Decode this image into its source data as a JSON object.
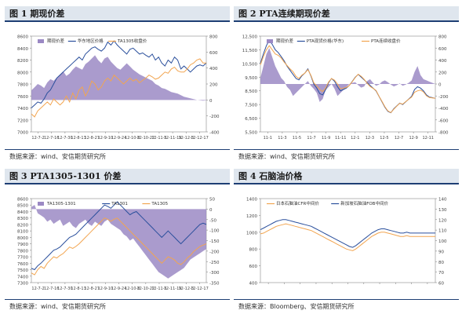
{
  "colors": {
    "basis": "#9b89c4",
    "line_blue": "#2a4f9c",
    "line_orange": "#f2a550",
    "title_bar": "#dfe6ee",
    "rule": "#1e3f74"
  },
  "chart_data": [
    {
      "type": "line",
      "panel_title": "图 1 期现价差",
      "source": "数据来源：wind、安信期货研究所",
      "x_ticks": [
        "12-7-2",
        "12-7-16",
        "12-7-30",
        "12-8-13",
        "12-8-27",
        "12-9-10",
        "12-9-24",
        "12-10-8",
        "12-10-22",
        "12-11-5",
        "12-11-19",
        "12-12-3",
        "12-12-17"
      ],
      "y_left": {
        "min": 7000,
        "max": 8600,
        "ticks": [
          "7000",
          "7200",
          "7400",
          "7600",
          "7800",
          "8000",
          "8200",
          "8400",
          "8600"
        ]
      },
      "y_right": {
        "min": -400,
        "max": 800,
        "ticks": [
          "-400",
          "-200",
          "0",
          "200",
          "400",
          "600",
          "800"
        ]
      },
      "legend": [
        "期现价差",
        "华东地区价格",
        "TA1305收盘价"
      ],
      "series": [
        {
          "name": "期现价差",
          "kind": "area",
          "axis": "right",
          "values": [
            120,
            160,
            200,
            180,
            150,
            220,
            260,
            240,
            280,
            320,
            360,
            300,
            330,
            380,
            420,
            400,
            380,
            450,
            480,
            520,
            560,
            500,
            460,
            520,
            540,
            480,
            440,
            400,
            380,
            420,
            460,
            420,
            380,
            350,
            320,
            300,
            280,
            260,
            240,
            200,
            180,
            150,
            140,
            120,
            100,
            90,
            80,
            60,
            40,
            30,
            20,
            10,
            0,
            -5,
            -10,
            -5
          ]
        },
        {
          "name": "华东地区价格",
          "kind": "line",
          "axis": "left",
          "values": [
            7400,
            7450,
            7500,
            7480,
            7550,
            7650,
            7700,
            7800,
            7900,
            7950,
            8000,
            8050,
            8100,
            8150,
            8200,
            8250,
            8200,
            8300,
            8350,
            8400,
            8420,
            8380,
            8350,
            8400,
            8500,
            8450,
            8520,
            8450,
            8400,
            8350,
            8300,
            8380,
            8400,
            8350,
            8300,
            8320,
            8280,
            8250,
            8300,
            8200,
            8250,
            8150,
            8100,
            8200,
            8150,
            8250,
            8200,
            8050,
            8100,
            8050,
            8000,
            8050,
            8100,
            8120,
            8100,
            8150
          ]
        },
        {
          "name": "TA1305收盘价",
          "kind": "line",
          "axis": "left",
          "values": [
            7300,
            7250,
            7350,
            7400,
            7450,
            7500,
            7450,
            7550,
            7500,
            7450,
            7500,
            7600,
            7500,
            7650,
            7550,
            7700,
            7750,
            7600,
            7700,
            7850,
            7800,
            7700,
            7750,
            7850,
            7900,
            7850,
            7950,
            7900,
            7850,
            7800,
            7850,
            7900,
            7850,
            7880,
            7820,
            7860,
            7900,
            7950,
            7920,
            7880,
            7900,
            7950,
            8000,
            7980,
            8050,
            8080,
            8020,
            8000,
            8000,
            8050,
            8120,
            8150,
            8200,
            8220,
            8150,
            8150
          ]
        }
      ]
    },
    {
      "type": "line",
      "panel_title": "图 2 PTA连续期现价差",
      "source": "数据来源：wind、安信期货研究所",
      "x_ticks": [
        "11-1",
        "11-3",
        "11-5",
        "11-7",
        "11-9",
        "11-11",
        "12-1",
        "12-3",
        "12-5",
        "12-7",
        "12-9",
        "12-11"
      ],
      "y_left": {
        "min": 5500,
        "max": 12500,
        "ticks": [
          "5,500",
          "6,500",
          "7,500",
          "8,500",
          "9,500",
          "10,500",
          "11,500",
          "12,500"
        ]
      },
      "y_right": {
        "min": -800,
        "max": 800,
        "ticks": [
          "-800",
          "-600",
          "-400",
          "-200",
          "0",
          "200",
          "400",
          "600",
          "800"
        ]
      },
      "legend": [
        "期现价差",
        "PTA现货价格(华东)",
        "PTA连续收盘价"
      ],
      "series": [
        {
          "name": "期现价差",
          "kind": "area",
          "axis": "right",
          "values": [
            100,
            300,
            500,
            600,
            450,
            300,
            200,
            100,
            50,
            -50,
            -100,
            -200,
            -150,
            -100,
            -50,
            0,
            50,
            -30,
            -80,
            -150,
            -300,
            -250,
            -100,
            -50,
            0,
            -80,
            -200,
            -150,
            -100,
            -50,
            0,
            20,
            30,
            -20,
            -60,
            -40,
            50,
            80,
            20,
            -30,
            -10,
            40,
            60,
            30,
            -10,
            -40,
            -20,
            10,
            -30,
            -10,
            20,
            60,
            200,
            300,
            150,
            80,
            60,
            40,
            20,
            0
          ]
        },
        {
          "name": "PTA现货价格(华东)",
          "kind": "line",
          "axis": "left",
          "values": [
            10500,
            11200,
            11800,
            12200,
            11900,
            11500,
            11300,
            11000,
            10700,
            10300,
            10000,
            9700,
            9400,
            9300,
            9600,
            9800,
            10100,
            9600,
            9000,
            8700,
            8300,
            8200,
            8600,
            9100,
            9400,
            9200,
            8800,
            8500,
            8600,
            8700,
            8900,
            9200,
            9500,
            9700,
            9500,
            9300,
            9100,
            8900,
            8700,
            8500,
            8100,
            7700,
            7300,
            7000,
            6900,
            7200,
            7400,
            7600,
            7500,
            7700,
            7900,
            8100,
            8600,
            8800,
            8700,
            8500,
            8200,
            8050,
            8000,
            7950
          ]
        },
        {
          "name": "PTA连续收盘价",
          "kind": "line",
          "axis": "left",
          "values": [
            10400,
            11000,
            11500,
            11800,
            11500,
            11200,
            11100,
            10900,
            10600,
            10350,
            10100,
            9900,
            9550,
            9400,
            9650,
            9800,
            10050,
            9650,
            9100,
            8850,
            8600,
            8450,
            8700,
            9150,
            9400,
            9280,
            9000,
            8650,
            8700,
            8750,
            8900,
            9180,
            9470,
            9720,
            9560,
            9340,
            9050,
            8820,
            8680,
            8530,
            8110,
            7730,
            7340,
            7030,
            6910,
            7160,
            7380,
            7590,
            7530,
            7710,
            7880,
            8040,
            8400,
            8500,
            8550,
            8420,
            8140,
            8010,
            7980,
            7950
          ]
        }
      ]
    },
    {
      "type": "line",
      "panel_title": "图 3 PTA1305-1301 价差",
      "source": "数据来源：wind、安信期货研究所",
      "x_ticks": [
        "12-7-2",
        "12-7-16",
        "12-7-30",
        "12-8-13",
        "12-8-27",
        "12-9-10",
        "12-9-24",
        "12-10-8",
        "12-10-22",
        "12-11-5",
        "12-11-19",
        "12-12-3",
        "12-12-17"
      ],
      "y_left": {
        "min": 7300,
        "max": 8600,
        "ticks": [
          "7300",
          "7400",
          "7500",
          "7600",
          "7700",
          "7800",
          "7900",
          "8000",
          "8100",
          "8200",
          "8300",
          "8400",
          "8500",
          "8600"
        ]
      },
      "y_right": {
        "min": -350,
        "max": 50,
        "ticks": [
          "-350",
          "-300",
          "-250",
          "-200",
          "-150",
          "-100",
          "-50",
          "0",
          "50"
        ]
      },
      "legend": [
        "TA1305-1301",
        "TA1301",
        "TA1305"
      ],
      "series": [
        {
          "name": "TA1305-1301",
          "kind": "area",
          "axis": "right",
          "values": [
            10,
            20,
            -20,
            -30,
            -40,
            -60,
            -50,
            -70,
            -60,
            -50,
            -80,
            -70,
            -60,
            -80,
            -90,
            -70,
            -60,
            -50,
            -70,
            -80,
            -60,
            -70,
            -80,
            -60,
            -50,
            -70,
            -80,
            -90,
            -100,
            -120,
            -130,
            -150,
            -140,
            -160,
            -180,
            -200,
            -220,
            -240,
            -260,
            -280,
            -300,
            -310,
            -320,
            -330,
            -320,
            -310,
            -300,
            -290,
            -280,
            -260,
            -240,
            -230,
            -220,
            -210,
            -200,
            -190
          ]
        },
        {
          "name": "TA1301",
          "kind": "line",
          "axis": "left",
          "values": [
            7520,
            7500,
            7560,
            7600,
            7650,
            7700,
            7750,
            7800,
            7820,
            7850,
            7900,
            7950,
            8000,
            8020,
            8050,
            8100,
            8150,
            8200,
            8250,
            8300,
            8350,
            8400,
            8450,
            8500,
            8480,
            8450,
            8500,
            8550,
            8500,
            8450,
            8400,
            8350,
            8380,
            8400,
            8350,
            8300,
            8250,
            8200,
            8150,
            8100,
            8050,
            8000,
            8050,
            8100,
            8050,
            8000,
            7950,
            7900,
            7950,
            8000,
            8050,
            8100,
            8150,
            8200,
            8220,
            8200
          ]
        },
        {
          "name": "TA1305",
          "kind": "line",
          "axis": "left",
          "values": [
            7450,
            7420,
            7500,
            7550,
            7520,
            7600,
            7650,
            7700,
            7680,
            7720,
            7750,
            7800,
            7850,
            7830,
            7860,
            7900,
            7950,
            8000,
            8050,
            8100,
            8150,
            8200,
            8250,
            8300,
            8280,
            8250,
            8280,
            8300,
            8250,
            8200,
            8150,
            8100,
            8050,
            8000,
            7950,
            7900,
            7850,
            7800,
            7750,
            7700,
            7650,
            7600,
            7650,
            7700,
            7680,
            7650,
            7600,
            7580,
            7620,
            7680,
            7720,
            7780,
            7820,
            7860,
            7880,
            7900
          ]
        }
      ]
    },
    {
      "type": "line",
      "panel_title": "图 4 石脑油价格",
      "source": "数据来源：Bloomberg、安信期货研究所",
      "x_ticks": [
        "",
        "",
        "",
        "",
        "",
        "",
        "",
        "",
        "",
        "",
        ""
      ],
      "y_left": {
        "min": 400,
        "max": 1400,
        "ticks": [
          "400",
          "600",
          "800",
          "1000",
          "1200",
          "1400"
        ]
      },
      "y_right": {
        "min": 60,
        "max": 140,
        "ticks": [
          "60",
          "70",
          "80",
          "90",
          "100",
          "110",
          "120",
          "130",
          "140"
        ]
      },
      "legend": [
        "日本石脑油CFR中间价",
        "新加坡石脑油FOB中间价"
      ],
      "series": [
        {
          "name": "日本石脑油CFR中间价",
          "kind": "line",
          "axis": "left",
          "values": [
            980,
            990,
            1010,
            1030,
            1050,
            1070,
            1080,
            1090,
            1100,
            1090,
            1080,
            1070,
            1060,
            1050,
            1040,
            1030,
            1020,
            1000,
            980,
            960,
            940,
            920,
            900,
            880,
            860,
            840,
            820,
            800,
            790,
            780,
            800,
            830,
            860,
            890,
            920,
            950,
            970,
            990,
            1000,
            1000,
            990,
            980,
            970,
            960,
            950,
            950,
            960,
            950,
            950,
            950,
            950,
            950,
            950,
            950,
            950,
            950
          ]
        },
        {
          "name": "新加坡石脑油FOB中间价",
          "kind": "line",
          "axis": "left",
          "values": [
            1030,
            1050,
            1070,
            1090,
            1110,
            1130,
            1140,
            1150,
            1150,
            1140,
            1130,
            1120,
            1110,
            1100,
            1090,
            1080,
            1070,
            1050,
            1030,
            1010,
            990,
            970,
            950,
            930,
            910,
            890,
            870,
            850,
            830,
            820,
            840,
            870,
            900,
            930,
            960,
            990,
            1010,
            1030,
            1040,
            1040,
            1030,
            1020,
            1010,
            1000,
            990,
            990,
            1000,
            990,
            990,
            990,
            990,
            990,
            990,
            990,
            990,
            990
          ]
        }
      ]
    }
  ]
}
